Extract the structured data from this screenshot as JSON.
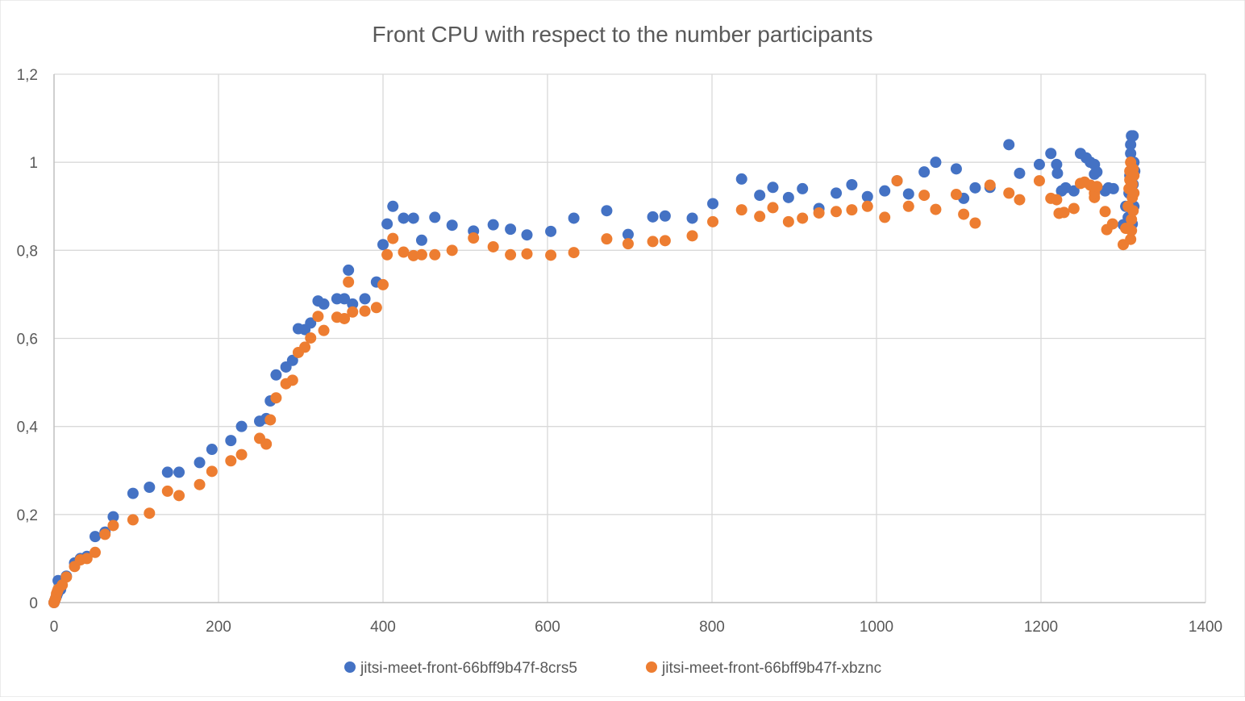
{
  "chart_data": {
    "type": "scatter",
    "title": "Front CPU with respect to the number participants",
    "xlabel": "",
    "ylabel": "",
    "xlim": [
      0,
      1400
    ],
    "ylim": [
      0,
      1.2
    ],
    "x_ticks": [
      0,
      200,
      400,
      600,
      800,
      1000,
      1200,
      1400
    ],
    "y_ticks": [
      0,
      0.2,
      0.4,
      0.6,
      0.8,
      1,
      1.2
    ],
    "x_tick_labels": [
      "0",
      "200",
      "400",
      "600",
      "800",
      "1000",
      "1200",
      "1400"
    ],
    "y_tick_labels": [
      "0",
      "0,2",
      "0,4",
      "0,6",
      "0,8",
      "1",
      "1,2"
    ],
    "grid": true,
    "legend_position": "bottom",
    "series": [
      {
        "name": "jitsi-meet-front-66bff9b47f-8crs5",
        "color": "#4472C4",
        "points": [
          [
            0,
            0
          ],
          [
            1,
            0.005
          ],
          [
            2,
            0.01
          ],
          [
            3,
            0.015
          ],
          [
            4,
            0.02
          ],
          [
            5,
            0.05
          ],
          [
            8,
            0.03
          ],
          [
            15,
            0.06
          ],
          [
            25,
            0.09
          ],
          [
            32,
            0.1
          ],
          [
            40,
            0.105
          ],
          [
            50,
            0.15
          ],
          [
            62,
            0.16
          ],
          [
            72,
            0.195
          ],
          [
            96,
            0.248
          ],
          [
            116,
            0.262
          ],
          [
            138,
            0.296
          ],
          [
            152,
            0.296
          ],
          [
            177,
            0.318
          ],
          [
            192,
            0.348
          ],
          [
            215,
            0.368
          ],
          [
            228,
            0.4
          ],
          [
            250,
            0.412
          ],
          [
            258,
            0.418
          ],
          [
            263,
            0.458
          ],
          [
            270,
            0.517
          ],
          [
            282,
            0.535
          ],
          [
            290,
            0.55
          ],
          [
            297,
            0.622
          ],
          [
            305,
            0.62
          ],
          [
            312,
            0.635
          ],
          [
            321,
            0.685
          ],
          [
            328,
            0.678
          ],
          [
            344,
            0.69
          ],
          [
            353,
            0.69
          ],
          [
            358,
            0.755
          ],
          [
            363,
            0.678
          ],
          [
            378,
            0.69
          ],
          [
            392,
            0.728
          ],
          [
            400,
            0.813
          ],
          [
            405,
            0.86
          ],
          [
            412,
            0.9
          ],
          [
            425,
            0.873
          ],
          [
            437,
            0.873
          ],
          [
            447,
            0.823
          ],
          [
            463,
            0.875
          ],
          [
            484,
            0.857
          ],
          [
            510,
            0.844
          ],
          [
            534,
            0.858
          ],
          [
            555,
            0.848
          ],
          [
            575,
            0.835
          ],
          [
            604,
            0.843
          ],
          [
            632,
            0.873
          ],
          [
            672,
            0.89
          ],
          [
            698,
            0.836
          ],
          [
            728,
            0.876
          ],
          [
            743,
            0.878
          ],
          [
            776,
            0.873
          ],
          [
            801,
            0.906
          ],
          [
            836,
            0.962
          ],
          [
            858,
            0.925
          ],
          [
            874,
            0.943
          ],
          [
            893,
            0.92
          ],
          [
            910,
            0.94
          ],
          [
            930,
            0.895
          ],
          [
            951,
            0.93
          ],
          [
            970,
            0.949
          ],
          [
            989,
            0.922
          ],
          [
            1010,
            0.935
          ],
          [
            1025,
            0.958
          ],
          [
            1039,
            0.928
          ],
          [
            1058,
            0.978
          ],
          [
            1072,
            1.0
          ],
          [
            1097,
            0.985
          ],
          [
            1106,
            0.918
          ],
          [
            1120,
            0.942
          ],
          [
            1138,
            0.943
          ],
          [
            1161,
            1.04
          ],
          [
            1174,
            0.975
          ],
          [
            1198,
            0.995
          ],
          [
            1212,
            1.02
          ],
          [
            1219,
            0.995
          ],
          [
            1220,
            0.975
          ],
          [
            1225,
            0.935
          ],
          [
            1230,
            0.942
          ],
          [
            1240,
            0.935
          ],
          [
            1248,
            1.02
          ],
          [
            1255,
            1.01
          ],
          [
            1260,
            1.0
          ],
          [
            1265,
            0.995
          ],
          [
            1265,
            0.973
          ],
          [
            1268,
            0.978
          ],
          [
            1278,
            0.935
          ],
          [
            1282,
            0.942
          ],
          [
            1288,
            0.94
          ],
          [
            1300,
            0.858
          ],
          [
            1303,
            0.9
          ],
          [
            1306,
            0.875
          ],
          [
            1307,
            0.93
          ],
          [
            1308,
            0.97
          ],
          [
            1309,
            1.02
          ],
          [
            1309,
            1.04
          ],
          [
            1310,
            1.06
          ],
          [
            1310,
            0.98
          ],
          [
            1311,
            0.86
          ],
          [
            1312,
            0.95
          ],
          [
            1312,
            1.06
          ],
          [
            1313,
            1.0
          ],
          [
            1313,
            0.9
          ],
          [
            1314,
            0.98
          ]
        ]
      },
      {
        "name": "jitsi-meet-front-66bff9b47f-xbznc",
        "color": "#ED7D31",
        "points": [
          [
            0,
            0
          ],
          [
            1,
            0.005
          ],
          [
            2,
            0.01
          ],
          [
            3,
            0.02
          ],
          [
            4,
            0.025
          ],
          [
            5,
            0.03
          ],
          [
            10,
            0.04
          ],
          [
            15,
            0.058
          ],
          [
            25,
            0.082
          ],
          [
            32,
            0.097
          ],
          [
            40,
            0.1
          ],
          [
            50,
            0.114
          ],
          [
            62,
            0.155
          ],
          [
            72,
            0.175
          ],
          [
            96,
            0.188
          ],
          [
            116,
            0.203
          ],
          [
            138,
            0.253
          ],
          [
            152,
            0.243
          ],
          [
            177,
            0.268
          ],
          [
            192,
            0.298
          ],
          [
            215,
            0.322
          ],
          [
            228,
            0.336
          ],
          [
            250,
            0.373
          ],
          [
            258,
            0.36
          ],
          [
            263,
            0.415
          ],
          [
            270,
            0.465
          ],
          [
            282,
            0.497
          ],
          [
            290,
            0.505
          ],
          [
            297,
            0.568
          ],
          [
            305,
            0.58
          ],
          [
            312,
            0.601
          ],
          [
            321,
            0.65
          ],
          [
            328,
            0.618
          ],
          [
            344,
            0.648
          ],
          [
            353,
            0.645
          ],
          [
            358,
            0.728
          ],
          [
            363,
            0.66
          ],
          [
            378,
            0.662
          ],
          [
            392,
            0.67
          ],
          [
            400,
            0.722
          ],
          [
            405,
            0.79
          ],
          [
            412,
            0.827
          ],
          [
            425,
            0.796
          ],
          [
            437,
            0.788
          ],
          [
            447,
            0.79
          ],
          [
            463,
            0.79
          ],
          [
            484,
            0.8
          ],
          [
            510,
            0.828
          ],
          [
            534,
            0.808
          ],
          [
            555,
            0.79
          ],
          [
            575,
            0.792
          ],
          [
            604,
            0.789
          ],
          [
            632,
            0.795
          ],
          [
            672,
            0.826
          ],
          [
            698,
            0.815
          ],
          [
            728,
            0.82
          ],
          [
            743,
            0.822
          ],
          [
            776,
            0.833
          ],
          [
            801,
            0.865
          ],
          [
            836,
            0.892
          ],
          [
            858,
            0.877
          ],
          [
            874,
            0.897
          ],
          [
            893,
            0.865
          ],
          [
            910,
            0.873
          ],
          [
            930,
            0.885
          ],
          [
            951,
            0.888
          ],
          [
            970,
            0.892
          ],
          [
            989,
            0.9
          ],
          [
            1010,
            0.875
          ],
          [
            1025,
            0.958
          ],
          [
            1039,
            0.9
          ],
          [
            1058,
            0.925
          ],
          [
            1072,
            0.893
          ],
          [
            1097,
            0.927
          ],
          [
            1106,
            0.882
          ],
          [
            1120,
            0.862
          ],
          [
            1138,
            0.948
          ],
          [
            1161,
            0.93
          ],
          [
            1174,
            0.915
          ],
          [
            1198,
            0.958
          ],
          [
            1212,
            0.918
          ],
          [
            1219,
            0.915
          ],
          [
            1222,
            0.884
          ],
          [
            1228,
            0.886
          ],
          [
            1240,
            0.895
          ],
          [
            1248,
            0.952
          ],
          [
            1253,
            0.955
          ],
          [
            1260,
            0.948
          ],
          [
            1265,
            0.92
          ],
          [
            1265,
            0.93
          ],
          [
            1268,
            0.945
          ],
          [
            1278,
            0.888
          ],
          [
            1280,
            0.847
          ],
          [
            1287,
            0.86
          ],
          [
            1300,
            0.813
          ],
          [
            1303,
            0.85
          ],
          [
            1306,
            0.9
          ],
          [
            1307,
            0.94
          ],
          [
            1308,
            0.96
          ],
          [
            1308,
            0.98
          ],
          [
            1309,
            1.0
          ],
          [
            1309,
            0.825
          ],
          [
            1310,
            0.845
          ],
          [
            1310,
            0.87
          ],
          [
            1311,
            0.92
          ],
          [
            1311,
            0.95
          ],
          [
            1312,
            0.985
          ],
          [
            1312,
            0.89
          ],
          [
            1313,
            0.93
          ],
          [
            1313,
            0.97
          ]
        ]
      }
    ]
  }
}
